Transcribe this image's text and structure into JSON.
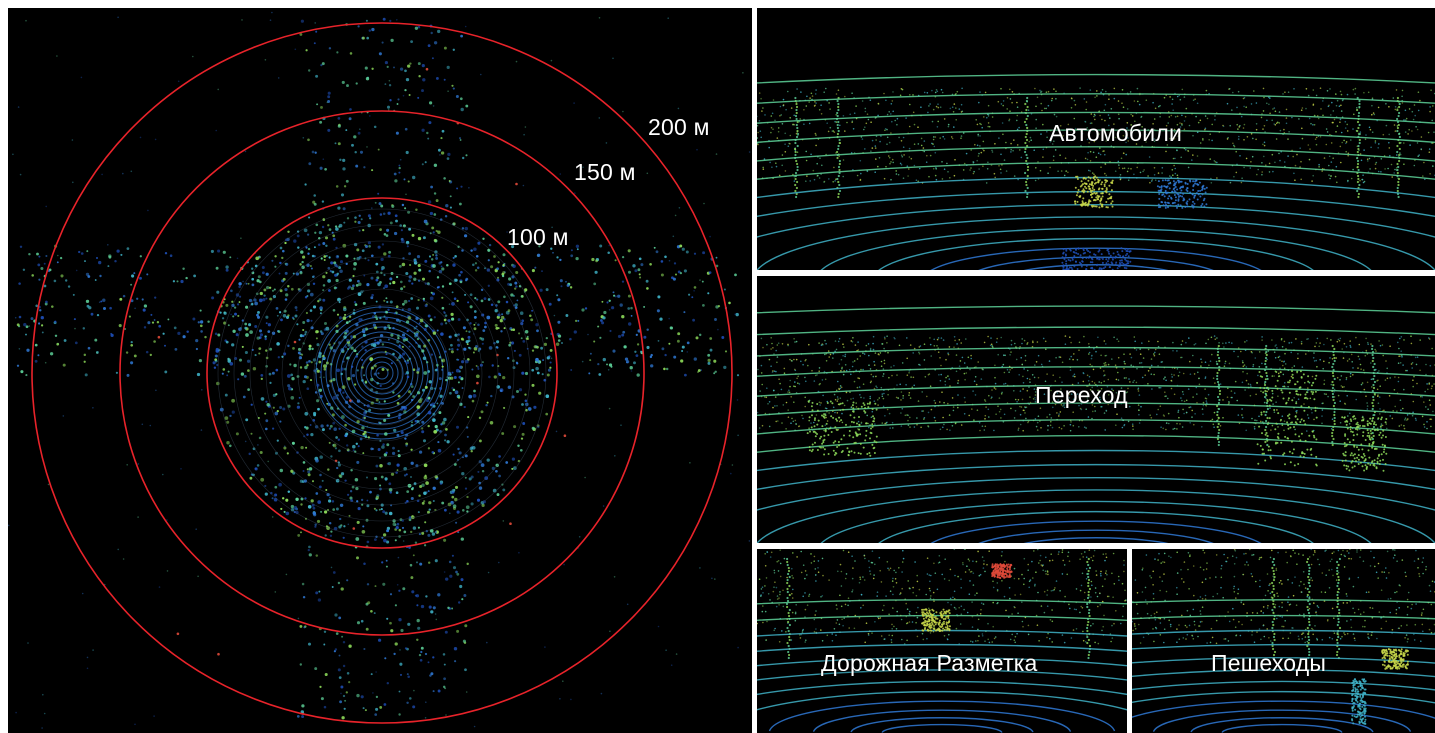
{
  "radar": {
    "ring_color": "#e8232a",
    "ring_labels": {
      "r200": "200 м",
      "r150": "150 м",
      "r100": "100 м"
    }
  },
  "views": {
    "cars": "Автомобили",
    "crossing": "Переход",
    "marking": "Дорожная Разметка",
    "pedestrians": "Пешеходы"
  },
  "point_colors": [
    "#1e4fb8",
    "#2f79d6",
    "#3fb3c8",
    "#5ed39a",
    "#8edc5a",
    "#c9d84a",
    "#e04a3a"
  ]
}
